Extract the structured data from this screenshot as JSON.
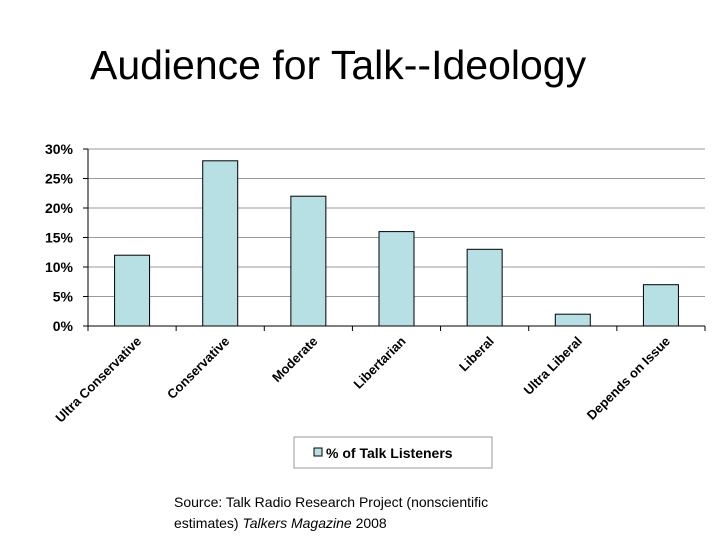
{
  "slide": {
    "title": "Audience for Talk--Ideology"
  },
  "source": {
    "line1": "Source: Talk Radio Research Project (nonscientific",
    "line2_prefix": "estimates) ",
    "line2_italic": "Talkers Magazine",
    "line2_suffix": " 2008"
  },
  "colors": {
    "bar_fill": "#b7e0e4",
    "bar_stroke": "#000000",
    "gridline": "#9a9a9a"
  },
  "chart_data": {
    "type": "bar",
    "categories": [
      "Ultra Conservative",
      "Conservative",
      "Moderate",
      "Libertarian",
      "Liberal",
      "Ultra Liberal",
      "Depends on Issue"
    ],
    "series": [
      {
        "name": "% of Talk Listeners",
        "values": [
          12,
          28,
          22,
          16,
          13,
          2,
          7
        ]
      }
    ],
    "ylim": [
      0,
      30
    ],
    "yticks": [
      0,
      5,
      10,
      15,
      20,
      25,
      30
    ],
    "ytick_labels": [
      "0%",
      "5%",
      "10%",
      "15%",
      "20%",
      "25%",
      "30%"
    ],
    "grid": true,
    "legend_position": "bottom",
    "title": "",
    "xlabel": "",
    "ylabel": ""
  }
}
